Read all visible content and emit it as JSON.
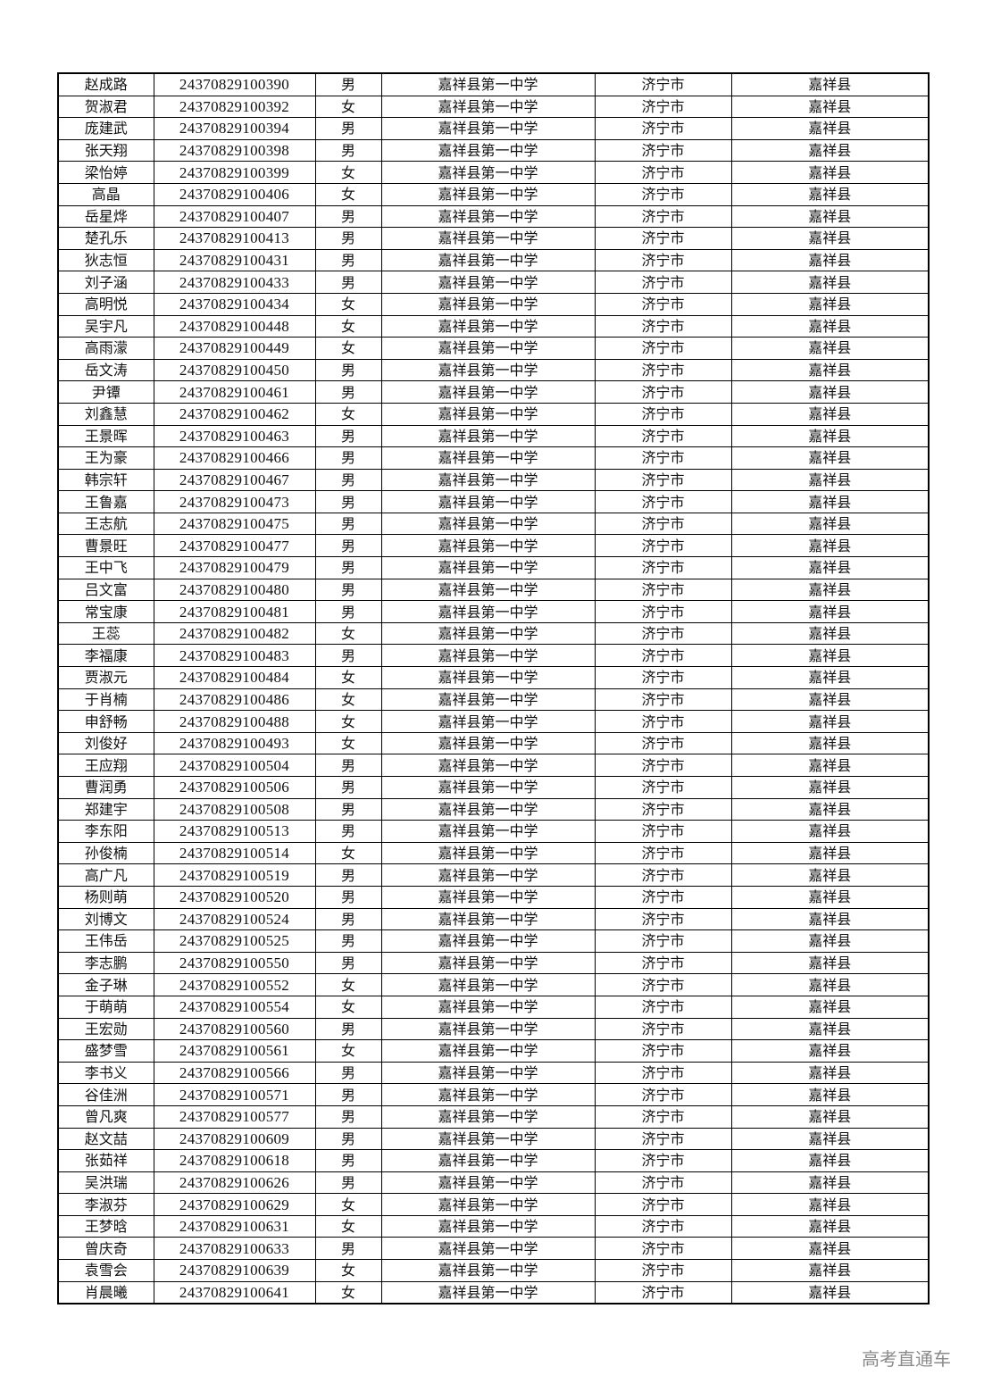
{
  "watermark": "高考直通车",
  "rows": [
    {
      "name": "赵成路",
      "id": "24370829100390",
      "gender": "男",
      "school": "嘉祥县第一中学",
      "city": "济宁市",
      "county": "嘉祥县"
    },
    {
      "name": "贺淑君",
      "id": "24370829100392",
      "gender": "女",
      "school": "嘉祥县第一中学",
      "city": "济宁市",
      "county": "嘉祥县"
    },
    {
      "name": "庞建武",
      "id": "24370829100394",
      "gender": "男",
      "school": "嘉祥县第一中学",
      "city": "济宁市",
      "county": "嘉祥县"
    },
    {
      "name": "张天翔",
      "id": "24370829100398",
      "gender": "男",
      "school": "嘉祥县第一中学",
      "city": "济宁市",
      "county": "嘉祥县"
    },
    {
      "name": "梁怡婷",
      "id": "24370829100399",
      "gender": "女",
      "school": "嘉祥县第一中学",
      "city": "济宁市",
      "county": "嘉祥县"
    },
    {
      "name": "高晶",
      "id": "24370829100406",
      "gender": "女",
      "school": "嘉祥县第一中学",
      "city": "济宁市",
      "county": "嘉祥县"
    },
    {
      "name": "岳星烨",
      "id": "24370829100407",
      "gender": "男",
      "school": "嘉祥县第一中学",
      "city": "济宁市",
      "county": "嘉祥县"
    },
    {
      "name": "楚孔乐",
      "id": "24370829100413",
      "gender": "男",
      "school": "嘉祥县第一中学",
      "city": "济宁市",
      "county": "嘉祥县"
    },
    {
      "name": "狄志恒",
      "id": "24370829100431",
      "gender": "男",
      "school": "嘉祥县第一中学",
      "city": "济宁市",
      "county": "嘉祥县"
    },
    {
      "name": "刘子涵",
      "id": "24370829100433",
      "gender": "男",
      "school": "嘉祥县第一中学",
      "city": "济宁市",
      "county": "嘉祥县"
    },
    {
      "name": "高明悦",
      "id": "24370829100434",
      "gender": "女",
      "school": "嘉祥县第一中学",
      "city": "济宁市",
      "county": "嘉祥县"
    },
    {
      "name": "吴宇凡",
      "id": "24370829100448",
      "gender": "女",
      "school": "嘉祥县第一中学",
      "city": "济宁市",
      "county": "嘉祥县"
    },
    {
      "name": "高雨濛",
      "id": "24370829100449",
      "gender": "女",
      "school": "嘉祥县第一中学",
      "city": "济宁市",
      "county": "嘉祥县"
    },
    {
      "name": "岳文涛",
      "id": "24370829100450",
      "gender": "男",
      "school": "嘉祥县第一中学",
      "city": "济宁市",
      "county": "嘉祥县"
    },
    {
      "name": "尹镡",
      "id": "24370829100461",
      "gender": "男",
      "school": "嘉祥县第一中学",
      "city": "济宁市",
      "county": "嘉祥县"
    },
    {
      "name": "刘鑫慧",
      "id": "24370829100462",
      "gender": "女",
      "school": "嘉祥县第一中学",
      "city": "济宁市",
      "county": "嘉祥县"
    },
    {
      "name": "王景晖",
      "id": "24370829100463",
      "gender": "男",
      "school": "嘉祥县第一中学",
      "city": "济宁市",
      "county": "嘉祥县"
    },
    {
      "name": "王为豪",
      "id": "24370829100466",
      "gender": "男",
      "school": "嘉祥县第一中学",
      "city": "济宁市",
      "county": "嘉祥县"
    },
    {
      "name": "韩宗轩",
      "id": "24370829100467",
      "gender": "男",
      "school": "嘉祥县第一中学",
      "city": "济宁市",
      "county": "嘉祥县"
    },
    {
      "name": "王鲁嘉",
      "id": "24370829100473",
      "gender": "男",
      "school": "嘉祥县第一中学",
      "city": "济宁市",
      "county": "嘉祥县"
    },
    {
      "name": "王志航",
      "id": "24370829100475",
      "gender": "男",
      "school": "嘉祥县第一中学",
      "city": "济宁市",
      "county": "嘉祥县"
    },
    {
      "name": "曹景旺",
      "id": "24370829100477",
      "gender": "男",
      "school": "嘉祥县第一中学",
      "city": "济宁市",
      "county": "嘉祥县"
    },
    {
      "name": "王中飞",
      "id": "24370829100479",
      "gender": "男",
      "school": "嘉祥县第一中学",
      "city": "济宁市",
      "county": "嘉祥县"
    },
    {
      "name": "吕文富",
      "id": "24370829100480",
      "gender": "男",
      "school": "嘉祥县第一中学",
      "city": "济宁市",
      "county": "嘉祥县"
    },
    {
      "name": "常宝康",
      "id": "24370829100481",
      "gender": "男",
      "school": "嘉祥县第一中学",
      "city": "济宁市",
      "county": "嘉祥县"
    },
    {
      "name": "王蕊",
      "id": "24370829100482",
      "gender": "女",
      "school": "嘉祥县第一中学",
      "city": "济宁市",
      "county": "嘉祥县"
    },
    {
      "name": "李福康",
      "id": "24370829100483",
      "gender": "男",
      "school": "嘉祥县第一中学",
      "city": "济宁市",
      "county": "嘉祥县"
    },
    {
      "name": "贾淑元",
      "id": "24370829100484",
      "gender": "女",
      "school": "嘉祥县第一中学",
      "city": "济宁市",
      "county": "嘉祥县"
    },
    {
      "name": "于肖楠",
      "id": "24370829100486",
      "gender": "女",
      "school": "嘉祥县第一中学",
      "city": "济宁市",
      "county": "嘉祥县"
    },
    {
      "name": "申舒畅",
      "id": "24370829100488",
      "gender": "女",
      "school": "嘉祥县第一中学",
      "city": "济宁市",
      "county": "嘉祥县"
    },
    {
      "name": "刘俊好",
      "id": "24370829100493",
      "gender": "女",
      "school": "嘉祥县第一中学",
      "city": "济宁市",
      "county": "嘉祥县"
    },
    {
      "name": "王应翔",
      "id": "24370829100504",
      "gender": "男",
      "school": "嘉祥县第一中学",
      "city": "济宁市",
      "county": "嘉祥县"
    },
    {
      "name": "曹润勇",
      "id": "24370829100506",
      "gender": "男",
      "school": "嘉祥县第一中学",
      "city": "济宁市",
      "county": "嘉祥县"
    },
    {
      "name": "郑建宇",
      "id": "24370829100508",
      "gender": "男",
      "school": "嘉祥县第一中学",
      "city": "济宁市",
      "county": "嘉祥县"
    },
    {
      "name": "李东阳",
      "id": "24370829100513",
      "gender": "男",
      "school": "嘉祥县第一中学",
      "city": "济宁市",
      "county": "嘉祥县"
    },
    {
      "name": "孙俊楠",
      "id": "24370829100514",
      "gender": "女",
      "school": "嘉祥县第一中学",
      "city": "济宁市",
      "county": "嘉祥县"
    },
    {
      "name": "高广凡",
      "id": "24370829100519",
      "gender": "男",
      "school": "嘉祥县第一中学",
      "city": "济宁市",
      "county": "嘉祥县"
    },
    {
      "name": "杨则萌",
      "id": "24370829100520",
      "gender": "男",
      "school": "嘉祥县第一中学",
      "city": "济宁市",
      "county": "嘉祥县"
    },
    {
      "name": "刘博文",
      "id": "24370829100524",
      "gender": "男",
      "school": "嘉祥县第一中学",
      "city": "济宁市",
      "county": "嘉祥县"
    },
    {
      "name": "王伟岳",
      "id": "24370829100525",
      "gender": "男",
      "school": "嘉祥县第一中学",
      "city": "济宁市",
      "county": "嘉祥县"
    },
    {
      "name": "李志鹏",
      "id": "24370829100550",
      "gender": "男",
      "school": "嘉祥县第一中学",
      "city": "济宁市",
      "county": "嘉祥县"
    },
    {
      "name": "金子琳",
      "id": "24370829100552",
      "gender": "女",
      "school": "嘉祥县第一中学",
      "city": "济宁市",
      "county": "嘉祥县"
    },
    {
      "name": "于萌萌",
      "id": "24370829100554",
      "gender": "女",
      "school": "嘉祥县第一中学",
      "city": "济宁市",
      "county": "嘉祥县"
    },
    {
      "name": "王宏勋",
      "id": "24370829100560",
      "gender": "男",
      "school": "嘉祥县第一中学",
      "city": "济宁市",
      "county": "嘉祥县"
    },
    {
      "name": "盛梦雪",
      "id": "24370829100561",
      "gender": "女",
      "school": "嘉祥县第一中学",
      "city": "济宁市",
      "county": "嘉祥县"
    },
    {
      "name": "李书义",
      "id": "24370829100566",
      "gender": "男",
      "school": "嘉祥县第一中学",
      "city": "济宁市",
      "county": "嘉祥县"
    },
    {
      "name": "谷佳洲",
      "id": "24370829100571",
      "gender": "男",
      "school": "嘉祥县第一中学",
      "city": "济宁市",
      "county": "嘉祥县"
    },
    {
      "name": "曾凡爽",
      "id": "24370829100577",
      "gender": "男",
      "school": "嘉祥县第一中学",
      "city": "济宁市",
      "county": "嘉祥县"
    },
    {
      "name": "赵文喆",
      "id": "24370829100609",
      "gender": "男",
      "school": "嘉祥县第一中学",
      "city": "济宁市",
      "county": "嘉祥县"
    },
    {
      "name": "张茹祥",
      "id": "24370829100618",
      "gender": "男",
      "school": "嘉祥县第一中学",
      "city": "济宁市",
      "county": "嘉祥县"
    },
    {
      "name": "吴洪瑞",
      "id": "24370829100626",
      "gender": "男",
      "school": "嘉祥县第一中学",
      "city": "济宁市",
      "county": "嘉祥县"
    },
    {
      "name": "李淑芬",
      "id": "24370829100629",
      "gender": "女",
      "school": "嘉祥县第一中学",
      "city": "济宁市",
      "county": "嘉祥县"
    },
    {
      "name": "王梦晗",
      "id": "24370829100631",
      "gender": "女",
      "school": "嘉祥县第一中学",
      "city": "济宁市",
      "county": "嘉祥县"
    },
    {
      "name": "曾庆奇",
      "id": "24370829100633",
      "gender": "男",
      "school": "嘉祥县第一中学",
      "city": "济宁市",
      "county": "嘉祥县"
    },
    {
      "name": "袁雪会",
      "id": "24370829100639",
      "gender": "女",
      "school": "嘉祥县第一中学",
      "city": "济宁市",
      "county": "嘉祥县"
    },
    {
      "name": "肖晨曦",
      "id": "24370829100641",
      "gender": "女",
      "school": "嘉祥县第一中学",
      "city": "济宁市",
      "county": "嘉祥县"
    }
  ]
}
